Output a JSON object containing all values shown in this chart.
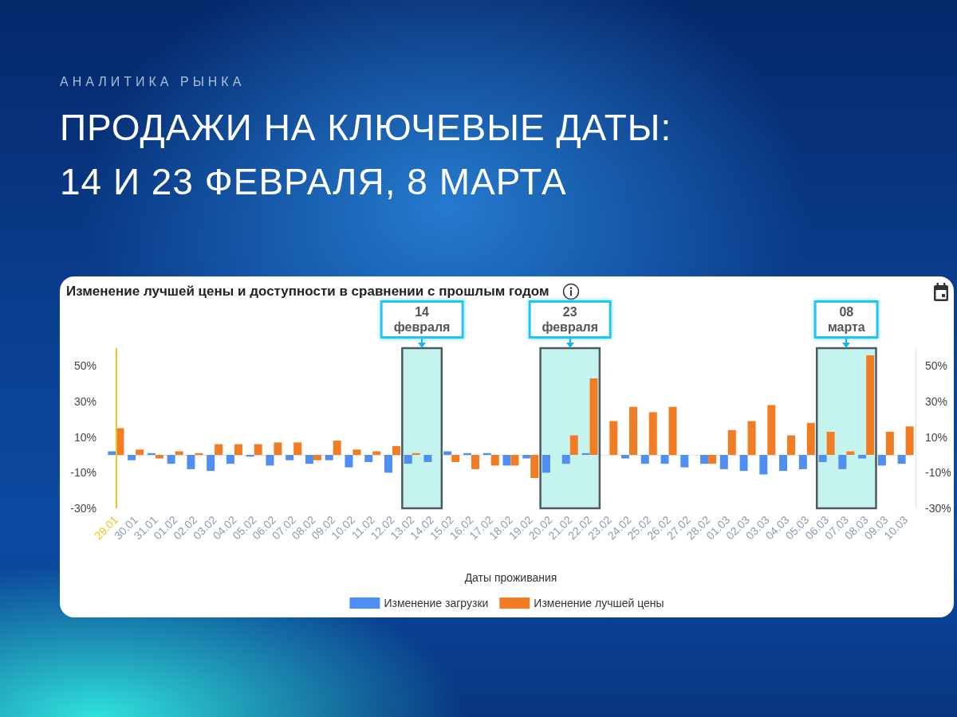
{
  "chart_data": {
    "type": "bar",
    "title": "ПРОДАЖИ НА КЛЮЧЕВЫЕ ДАТЫ: 14 И 23 ФЕВРАЛЯ, 8 МАРТА",
    "subtitle": "Изменение лучшей цены и доступности в сравнении с прошлым годом",
    "annotations": [
      "АНАЛИТИКА РЫНКА"
    ],
    "xlabel": "Даты проживания",
    "categories": [
      "29.01",
      "30.01",
      "31.01",
      "01.02",
      "02.02",
      "03.02",
      "04.02",
      "05.02",
      "06.02",
      "07.02",
      "08.02",
      "09.02",
      "10.02",
      "11.02",
      "12.02",
      "13.02",
      "14.02",
      "15.02",
      "16.02",
      "17.02",
      "18.02",
      "19.02",
      "20.02",
      "21.02",
      "22.02",
      "23.02",
      "24.02",
      "25.02",
      "26.02",
      "27.02",
      "28.02",
      "01.03",
      "02.03",
      "03.03",
      "04.03",
      "05.03",
      "06.03",
      "07.03",
      "08.03",
      "09.03",
      "10.03"
    ],
    "series": [
      {
        "name": "Изменение загрузки",
        "color": "#4f8ef2",
        "values": [
          2,
          -3,
          1,
          -5,
          -8,
          -9,
          -5,
          -1,
          -6,
          -3,
          -5,
          -3,
          -7,
          -4,
          -10,
          -5,
          -4,
          2,
          1,
          1,
          -6,
          -2,
          -10,
          -5,
          1,
          0,
          -2,
          -5,
          -5,
          -7,
          -5,
          -8,
          -9,
          -11,
          -9,
          -8,
          -4,
          -8,
          -2,
          -6,
          -5
        ]
      },
      {
        "name": "Изменение лучшей цены",
        "color": "#f27c24",
        "values": [
          15,
          3,
          -2,
          2,
          1,
          6,
          6,
          6,
          7,
          7,
          -3,
          8,
          3,
          2,
          5,
          1,
          0,
          -4,
          -8,
          -6,
          -6,
          -13,
          0,
          11,
          43,
          19,
          27,
          24,
          27,
          0,
          -5,
          14,
          19,
          28,
          11,
          18,
          13,
          2,
          56,
          13,
          16
        ]
      }
    ],
    "ylim": [
      -30,
      60
    ],
    "yticks": [
      {
        "value": -30,
        "label": "-30%"
      },
      {
        "value": -10,
        "label": "-10%"
      },
      {
        "value": 10,
        "label": "10%"
      },
      {
        "value": 30,
        "label": "30%"
      },
      {
        "value": 50,
        "label": "50%"
      }
    ],
    "y2lim": [
      -30,
      60
    ],
    "y2ticks": [
      {
        "value": -30,
        "label": "-30%"
      },
      {
        "value": -10,
        "label": "-10%"
      },
      {
        "value": 10,
        "label": "10%"
      },
      {
        "value": 30,
        "label": "30%"
      },
      {
        "value": 50,
        "label": "50%"
      }
    ],
    "ref_lines": [
      {
        "axis": "x",
        "value": "29.01",
        "color": "#f2c417"
      }
    ],
    "bands": [
      {
        "axis": "x",
        "from": "13.02",
        "to": "14.02",
        "label": "14 февраля",
        "color": "#c5f4ee"
      },
      {
        "axis": "x",
        "from": "20.02",
        "to": "22.02",
        "label": "23 февраля",
        "color": "#c5f4ee"
      },
      {
        "axis": "x",
        "from": "06.03",
        "to": "08.03",
        "label": "08 марта",
        "color": "#c5f4ee"
      }
    ],
    "legend": "bottom",
    "grid": false
  }
}
